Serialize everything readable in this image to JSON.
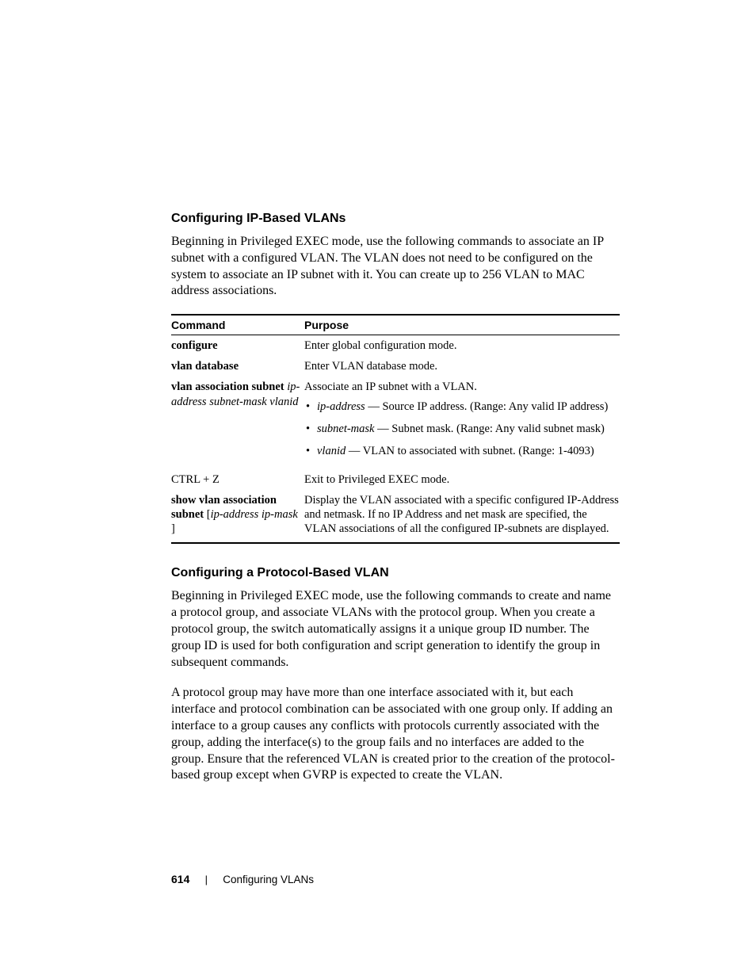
{
  "section1": {
    "heading": "Configuring IP-Based VLANs",
    "para": "Beginning in Privileged EXEC mode, use the following commands to associate an IP subnet with a configured VLAN. The VLAN does not need to be configured on the system to associate an IP subnet with it. You can create up to 256 VLAN to MAC address associations."
  },
  "table": {
    "headers": {
      "command": "Command",
      "purpose": "Purpose"
    },
    "rows": {
      "r1": {
        "command": "configure",
        "purpose": "Enter global configuration mode."
      },
      "r2": {
        "command": "vlan database",
        "purpose": "Enter VLAN database mode."
      },
      "r3": {
        "cmd_bold": "vlan association subnet",
        "cmd_ital": "ip-address subnet-mask vlanid",
        "purpose_line": "Associate an IP subnet with a VLAN.",
        "b1_ital": "ip-address",
        "b1_rest": " — Source IP address. (Range: Any valid IP address)",
        "b2_ital": "subnet-mask",
        "b2_rest": " — Subnet mask. (Range: Any valid subnet mask)",
        "b3_ital": "vlanid",
        "b3_rest": " — VLAN to associated with subnet. (Range: 1-4093)"
      },
      "r4": {
        "command": "CTRL + Z",
        "purpose": "Exit to Privileged EXEC mode."
      },
      "r5": {
        "cmd_bold1": "show vlan association subnet",
        "cmd_bracket_open": " [",
        "cmd_ital": "ip-address ip-mask",
        "cmd_bracket_close": " ]",
        "purpose": "Display the VLAN associated with a specific configured IP-Address and netmask. If no IP Address and net mask are specified, the VLAN associations of all the configured IP-subnets are displayed."
      }
    }
  },
  "section2": {
    "heading": "Configuring a Protocol-Based VLAN",
    "para1": "Beginning in Privileged EXEC mode, use the following commands to create and name a protocol group, and associate VLANs with the protocol group. When you create a protocol group, the switch automatically assigns it a unique group ID number. The group ID is used for both configuration and script generation to identify the group in subsequent commands.",
    "para2": "A protocol group may have more than one interface associated with it, but each interface and protocol combination can be associated with one group only. If adding an interface to a group causes any conflicts with protocols currently associated with the group, adding the interface(s) to the group fails and no interfaces are added to the group. Ensure that the referenced VLAN is created prior to the creation of the protocol-based group except when GVRP is expected to create the VLAN."
  },
  "footer": {
    "page_number": "614",
    "section_name": "Configuring VLANs"
  }
}
